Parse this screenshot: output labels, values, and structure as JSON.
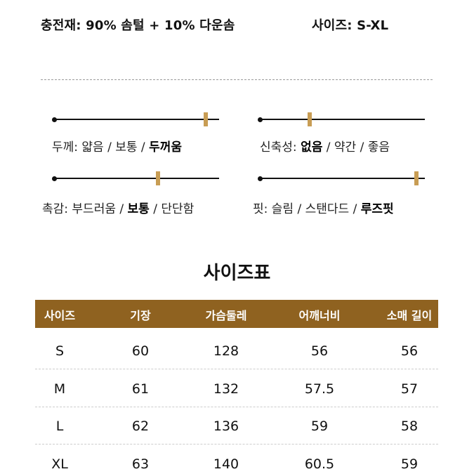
{
  "header": {
    "fill": "충전재: 90% 솜털 + 10% 다운솜",
    "size_range": "사이즈: S-XL"
  },
  "scales": [
    {
      "name": "두께",
      "label": "두께:",
      "options": [
        "얇음",
        "보통",
        "두꺼움"
      ],
      "selected": 2,
      "level": 0.92
    },
    {
      "name": "신축성",
      "label": "신축성:",
      "options": [
        "없음",
        "약간",
        "좋음"
      ],
      "selected": 0,
      "level": 0.3
    },
    {
      "name": "촉감",
      "label": "촉감:",
      "options": [
        "부드러움",
        "보통",
        "단단함"
      ],
      "selected": 1,
      "level": 0.63
    },
    {
      "name": "핏",
      "label": "핏:",
      "options": [
        "슬림",
        "스탠다드",
        "루즈핏"
      ],
      "selected": 2,
      "level": 0.95
    }
  ],
  "size_table": {
    "title": "사이즈표",
    "header_color": "#8f6220",
    "columns": [
      "사이즈",
      "기장",
      "가슴둘레",
      "어깨너비",
      "소매 길이"
    ],
    "rows": [
      [
        "S",
        "60",
        "128",
        "56",
        "56"
      ],
      [
        "M",
        "61",
        "132",
        "57.5",
        "57"
      ],
      [
        "L",
        "62",
        "136",
        "59",
        "58"
      ],
      [
        "XL",
        "63",
        "140",
        "60.5",
        "59"
      ]
    ]
  },
  "colors": {
    "accent": "#c89d54",
    "text": "#111111",
    "divider": "#9a9a9a"
  }
}
